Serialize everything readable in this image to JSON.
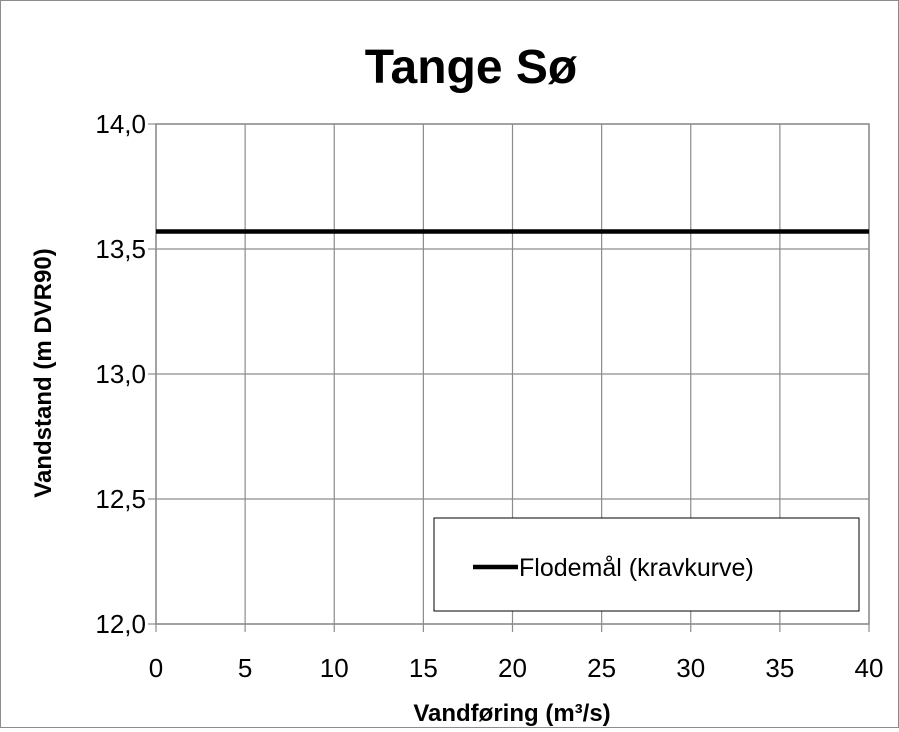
{
  "chart_data": {
    "type": "line",
    "title": "Tange Sø",
    "xlabel": "Vandføring (m³/s)",
    "ylabel": "Vandstand (m DVR90)",
    "xlim": [
      0,
      40
    ],
    "ylim": [
      12.0,
      14.0
    ],
    "x_ticks": [
      0,
      5,
      10,
      15,
      20,
      25,
      30,
      35,
      40
    ],
    "x_tick_labels": [
      "0",
      "5",
      "10",
      "15",
      "20",
      "25",
      "30",
      "35",
      "40"
    ],
    "y_ticks": [
      12.0,
      12.5,
      13.0,
      13.5,
      14.0
    ],
    "y_tick_labels": [
      "12,0",
      "12,5",
      "13,0",
      "13,5",
      "14,0"
    ],
    "grid": true,
    "legend_position": "bottom-right",
    "series": [
      {
        "name": "Flodemål (kravkurve)",
        "color": "#000000",
        "x": [
          0,
          40
        ],
        "y": [
          13.57,
          13.57
        ]
      }
    ]
  }
}
